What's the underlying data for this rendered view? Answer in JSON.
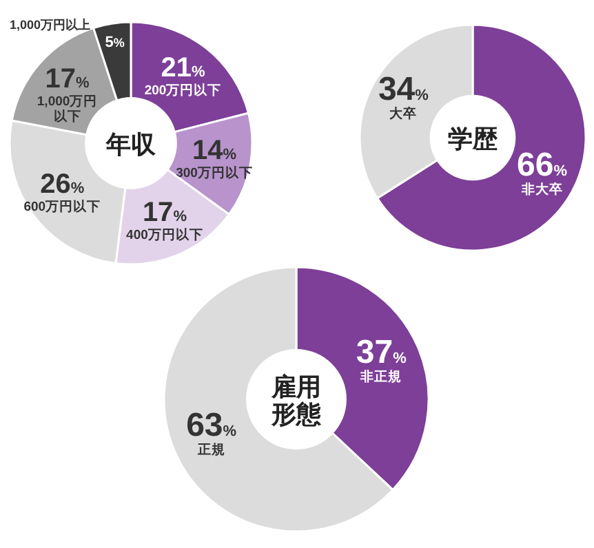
{
  "chart_data": [
    {
      "type": "donut",
      "title": "年収",
      "categories": [
        "200万円以下",
        "300万円以下",
        "400万円以下",
        "600万円以下",
        "1,000万円以下",
        "1,000万円以上"
      ],
      "values": [
        21,
        14,
        17,
        26,
        17,
        5
      ],
      "value_labels": [
        "21%",
        "14%",
        "17%",
        "26%",
        "17%",
        "5%"
      ],
      "colors": [
        "#7d3f98",
        "#b893cc",
        "#e2d3ea",
        "#dcdcdc",
        "#a3a3a3",
        "#3a3a3a"
      ]
    },
    {
      "type": "donut",
      "title": "学歴",
      "categories": [
        "非大卒",
        "大卒"
      ],
      "values": [
        66,
        34
      ],
      "value_labels": [
        "66%",
        "34%"
      ],
      "colors": [
        "#7d3f98",
        "#dcdcdc"
      ]
    },
    {
      "type": "donut",
      "title": "雇用形態",
      "categories": [
        "非正規",
        "正規"
      ],
      "values": [
        37,
        63
      ],
      "value_labels": [
        "37%",
        "63%"
      ],
      "colors": [
        "#7d3f98",
        "#dcdcdc"
      ]
    }
  ]
}
